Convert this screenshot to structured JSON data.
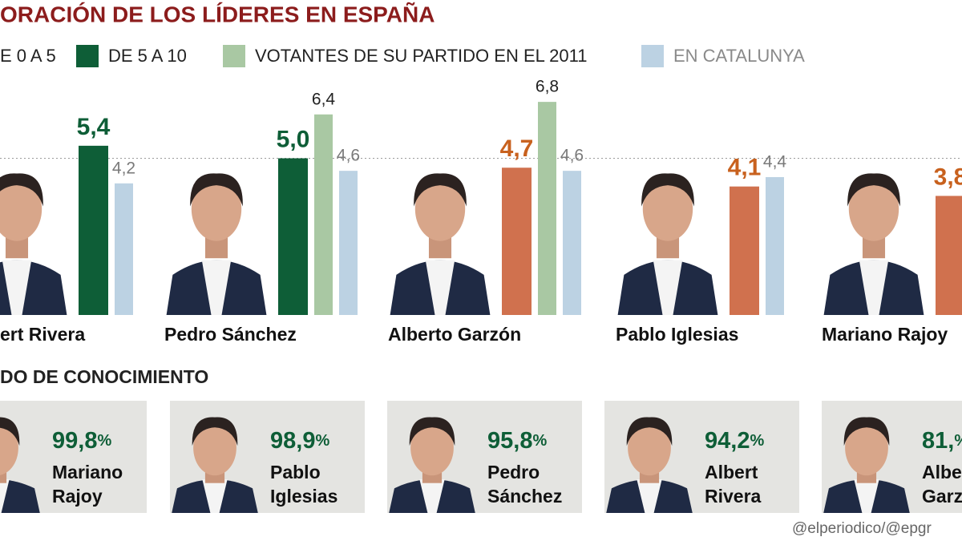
{
  "chart_data": [
    {
      "type": "bar",
      "title": "ORACIÓN DE LOS LÍDERES EN ESPAÑA",
      "categories": [
        "ert Rivera",
        "Pedro Sánchez",
        "Alberto Garzón",
        "Pablo Iglesias",
        "Mariano Rajoy"
      ],
      "series": [
        {
          "name": "E 0 A 5",
          "color": "#d0714e",
          "label_color": "#c8611e",
          "values": [
            null,
            null,
            4.7,
            4.1,
            3.8
          ],
          "value_labels": [
            null,
            null,
            "4,7",
            "4,1",
            "3,8"
          ]
        },
        {
          "name": "DE 5 A 10",
          "color": "#0e5e37",
          "label_color": "#0e5e37",
          "values": [
            5.4,
            5.0,
            null,
            null,
            null
          ],
          "value_labels": [
            "5,4",
            "5,0",
            null,
            null,
            null
          ]
        },
        {
          "name": "VOTANTES DE SU PARTIDO EN EL 2011",
          "color": "#a9c8a3",
          "label_color": "#222222",
          "values": [
            null,
            6.4,
            6.8,
            null,
            null
          ],
          "value_labels": [
            null,
            "6,4",
            "6,8",
            null,
            null
          ]
        },
        {
          "name": "EN CATALUNYA",
          "color": "#bcd2e3",
          "label_color": "#7a7a7a",
          "values": [
            4.2,
            4.6,
            4.6,
            4.4,
            null
          ],
          "value_labels": [
            "4,2",
            "4,6",
            "4,6",
            "4,4",
            null
          ]
        }
      ],
      "ylim": [
        0,
        10
      ],
      "reference_line": 5
    },
    {
      "type": "cards",
      "title": "DO DE CONOCIMIENTO",
      "unit": "%",
      "color": "#0e5e37",
      "categories": [
        [
          "Mariano",
          "Rajoy"
        ],
        [
          "Pablo",
          "Iglesias"
        ],
        [
          "Pedro",
          "Sánchez"
        ],
        [
          "Albert",
          "Rivera"
        ],
        [
          "Albe",
          "Garz"
        ]
      ],
      "values": [
        99.8,
        98.9,
        95.8,
        94.2,
        81
      ],
      "value_labels": [
        "99,8",
        "98,9",
        "95,8",
        "94,2",
        "81,"
      ],
      "source": "@elperiodico/@epgr"
    }
  ]
}
